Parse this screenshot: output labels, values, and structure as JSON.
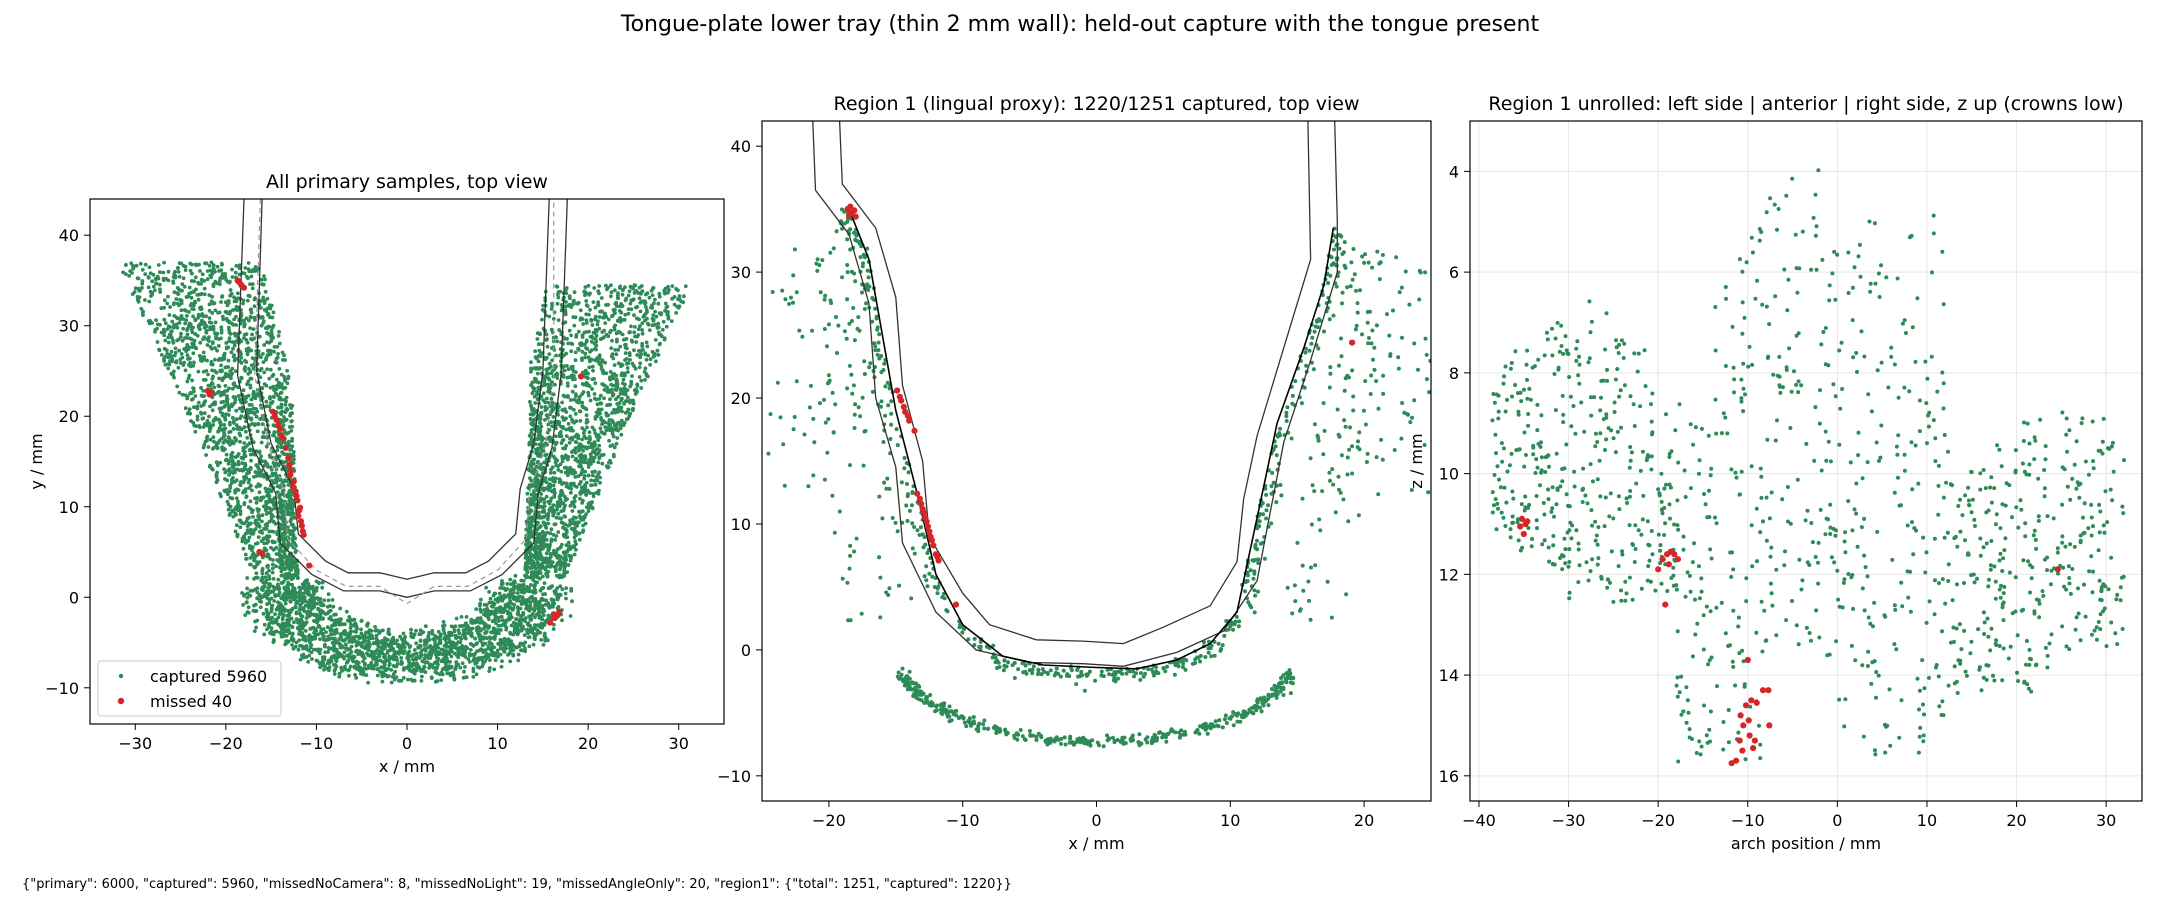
{
  "figure": {
    "title": "Tongue-plate lower tray (thin 2 mm wall): held-out capture with the tongue present",
    "footer": "{\"primary\": 6000, \"captured\": 5960, \"missedNoCamera\": 8, \"missedNoLight\": 19, \"missedAngleOnly\": 20, \"region1\": {\"total\": 1251, \"captured\": 1220}}"
  },
  "colors": {
    "captured": "#2e8b57",
    "missed": "#d62728",
    "outline": "#333333",
    "dashed": "#999999"
  },
  "chart_data": [
    {
      "type": "scatter",
      "title": "All primary samples, top view",
      "xlabel": "x / mm",
      "ylabel": "y / mm",
      "xlim": [
        -35,
        35
      ],
      "ylim": [
        -14,
        44
      ],
      "xticks": [
        -30,
        -20,
        -10,
        0,
        10,
        20,
        30
      ],
      "yticks": [
        -10,
        0,
        10,
        20,
        30,
        40
      ],
      "grid": false,
      "legend": {
        "placement": "lower-left",
        "entries": [
          {
            "label": "captured 5960",
            "series": "captured"
          },
          {
            "label": "missed 40",
            "series": "missed"
          }
        ]
      },
      "series": [
        {
          "name": "captured 5960",
          "count": 5960
        },
        {
          "name": "missed 40",
          "count": 40,
          "points": [
            [
              -18.7,
              35.0
            ],
            [
              -18.3,
              34.5
            ],
            [
              -18.0,
              34.2
            ],
            [
              -22.0,
              22.8
            ],
            [
              -21.8,
              22.4
            ],
            [
              -14.8,
              20.5
            ],
            [
              -14.4,
              19.6
            ],
            [
              -14.0,
              18.6
            ],
            [
              -13.7,
              17.6
            ],
            [
              -13.4,
              16.5
            ],
            [
              -13.1,
              15.4
            ],
            [
              -12.8,
              14.0
            ],
            [
              -12.5,
              12.8
            ],
            [
              -12.3,
              11.7
            ],
            [
              -12.1,
              10.7
            ],
            [
              -11.9,
              9.6
            ],
            [
              -11.7,
              8.4
            ],
            [
              -11.5,
              7.3
            ],
            [
              -16.3,
              5.0
            ],
            [
              -10.8,
              3.5
            ],
            [
              19.2,
              24.4
            ],
            [
              16.8,
              -1.6
            ],
            [
              16.3,
              -2.3
            ],
            [
              15.8,
              -2.8
            ],
            [
              16.2,
              -1.9
            ],
            [
              -12.0,
              9.0
            ],
            [
              -11.6,
              7.9
            ],
            [
              -12.6,
              12.2
            ],
            [
              -13.0,
              14.6
            ],
            [
              -14.2,
              19.0
            ],
            [
              -18.5,
              34.8
            ],
            [
              -13.9,
              17.9
            ],
            [
              -12.2,
              11.2
            ],
            [
              -11.8,
              9.9
            ],
            [
              -11.4,
              6.9
            ],
            [
              -12.9,
              13.5
            ],
            [
              -14.6,
              20.0
            ],
            [
              16.6,
              -2.0
            ],
            [
              -16.0,
              4.8
            ],
            [
              -21.6,
              22.6
            ]
          ]
        }
      ],
      "outlines": {
        "inner": [
          [
            -16,
            44
          ],
          [
            -16.6,
            25
          ],
          [
            -15,
            17
          ],
          [
            -12.5,
            12
          ],
          [
            -12,
            7
          ],
          [
            -9,
            4
          ],
          [
            -6.5,
            2.7
          ],
          [
            -3,
            2.7
          ],
          [
            0,
            2
          ],
          [
            3,
            2.7
          ],
          [
            6.5,
            2.7
          ],
          [
            9,
            4
          ],
          [
            12,
            7
          ],
          [
            12.5,
            12
          ],
          [
            14,
            17
          ],
          [
            15,
            25
          ],
          [
            15.7,
            44
          ]
        ],
        "outer": [
          [
            -18,
            44
          ],
          [
            -18.7,
            24.5
          ],
          [
            -17,
            16.5
          ],
          [
            -14.5,
            11.5
          ],
          [
            -14,
            6
          ],
          [
            -10.5,
            2.5
          ],
          [
            -7,
            0.7
          ],
          [
            -3,
            0.7
          ],
          [
            0,
            0
          ],
          [
            3,
            0.7
          ],
          [
            7,
            0.7
          ],
          [
            10.5,
            2.5
          ],
          [
            14,
            6
          ],
          [
            14.5,
            11.5
          ],
          [
            16,
            16.5
          ],
          [
            17,
            24.5
          ],
          [
            17.7,
            44
          ]
        ],
        "dashed": [
          [
            -16.2,
            44
          ],
          [
            -16.8,
            24.5
          ],
          [
            -15.3,
            16.8
          ],
          [
            -13.5,
            11.5
          ],
          [
            -13.2,
            6.5
          ],
          [
            -10,
            3
          ],
          [
            -6.7,
            1.2
          ],
          [
            -3,
            1.2
          ],
          [
            0,
            -0.7
          ],
          [
            3,
            1.2
          ],
          [
            6.7,
            1.2
          ],
          [
            10,
            3
          ],
          [
            13.2,
            6.5
          ],
          [
            13.5,
            11.5
          ],
          [
            15.3,
            16.8
          ],
          [
            16.2,
            24.5
          ],
          [
            16.2,
            44
          ]
        ]
      }
    },
    {
      "type": "scatter",
      "title": "Region 1 (lingual proxy): 1220/1251 captured, top view",
      "xlabel": "x / mm",
      "ylabel": "",
      "xlim": [
        -25,
        25
      ],
      "ylim": [
        -12,
        42
      ],
      "xticks": [
        -20,
        -10,
        0,
        10,
        20
      ],
      "yticks": [
        -10,
        0,
        10,
        20,
        30,
        40
      ],
      "grid": false,
      "series": [
        {
          "name": "captured",
          "count": 1220
        },
        {
          "name": "missed",
          "count": 31,
          "points": [
            [
              -18.6,
              35.0
            ],
            [
              -18.3,
              34.7
            ],
            [
              -18.0,
              34.4
            ],
            [
              -18.4,
              35.2
            ],
            [
              -14.9,
              20.6
            ],
            [
              -14.6,
              19.8
            ],
            [
              -14.3,
              18.9
            ],
            [
              -14.0,
              18.2
            ],
            [
              -13.6,
              17.4
            ],
            [
              -13.2,
              12.0
            ],
            [
              -13.0,
              11.2
            ],
            [
              -12.8,
              10.5
            ],
            [
              -12.6,
              9.8
            ],
            [
              -12.4,
              9.0
            ],
            [
              -12.2,
              8.3
            ],
            [
              -12.0,
              7.6
            ],
            [
              -11.8,
              7.1
            ],
            [
              -10.5,
              3.6
            ],
            [
              19.1,
              24.4
            ],
            [
              -18.1,
              34.9
            ],
            [
              -14.4,
              19.3
            ],
            [
              -12.9,
              10.9
            ],
            [
              -12.3,
              8.7
            ],
            [
              -13.4,
              12.4
            ],
            [
              -14.1,
              18.6
            ],
            [
              -12.7,
              10.2
            ],
            [
              -12.5,
              9.4
            ],
            [
              -11.9,
              7.4
            ],
            [
              -18.5,
              34.5
            ],
            [
              -14.7,
              20.1
            ],
            [
              -13.1,
              11.6
            ]
          ]
        }
      ],
      "outlines": {
        "inner": [
          [
            -19.2,
            42
          ],
          [
            -19,
            37
          ],
          [
            -16.5,
            33.5
          ],
          [
            -15,
            28
          ],
          [
            -14.5,
            21
          ],
          [
            -13,
            15
          ],
          [
            -12.5,
            9
          ],
          [
            -10,
            4.5
          ],
          [
            -8,
            2
          ],
          [
            -4.5,
            0.8
          ],
          [
            -1,
            0.7
          ],
          [
            2,
            0.5
          ],
          [
            5,
            1.8
          ],
          [
            8.5,
            3.5
          ],
          [
            10.5,
            7
          ],
          [
            11,
            12
          ],
          [
            12,
            17
          ],
          [
            14,
            24
          ],
          [
            16,
            31
          ],
          [
            15.8,
            42
          ]
        ],
        "outer": [
          [
            -21.2,
            42
          ],
          [
            -21,
            36.5
          ],
          [
            -18.5,
            33
          ],
          [
            -17,
            27.5
          ],
          [
            -16.5,
            20
          ],
          [
            -15,
            14.5
          ],
          [
            -14.5,
            8.5
          ],
          [
            -12,
            3
          ],
          [
            -9,
            0
          ],
          [
            -5,
            -1
          ],
          [
            -1,
            -1.1
          ],
          [
            2,
            -1.3
          ],
          [
            6,
            -0.2
          ],
          [
            9.5,
            1.5
          ],
          [
            12,
            5.5
          ],
          [
            13,
            11
          ],
          [
            14,
            16.5
          ],
          [
            16,
            23
          ],
          [
            18,
            30
          ],
          [
            18,
            34
          ],
          [
            17.8,
            42
          ]
        ],
        "surface": [
          [
            -18.5,
            35
          ],
          [
            -17,
            31
          ],
          [
            -16,
            25
          ],
          [
            -15,
            19
          ],
          [
            -13.3,
            12
          ],
          [
            -12,
            6
          ],
          [
            -10,
            2
          ],
          [
            -7,
            -0.5
          ],
          [
            -4,
            -1.2
          ],
          [
            0,
            -1.4
          ],
          [
            3,
            -1.5
          ],
          [
            6,
            -0.8
          ],
          [
            8.5,
            0.5
          ],
          [
            10.5,
            3
          ],
          [
            11.5,
            8
          ],
          [
            12.5,
            13
          ],
          [
            13.5,
            18
          ],
          [
            15.5,
            24
          ],
          [
            17,
            29
          ],
          [
            17.7,
            33.5
          ]
        ]
      }
    },
    {
      "type": "scatter",
      "title": "Region 1 unrolled: left side | anterior | right side, z up (crowns low)",
      "xlabel": "arch position / mm",
      "ylabel": "z / mm",
      "xlim": [
        -41,
        34
      ],
      "ylim": [
        16.5,
        3
      ],
      "y_inverted": true,
      "xticks": [
        -40,
        -30,
        -20,
        -10,
        0,
        10,
        20,
        30
      ],
      "yticks": [
        4,
        6,
        8,
        10,
        12,
        14,
        16
      ],
      "grid": true,
      "series": [
        {
          "name": "captured",
          "count": 1220
        },
        {
          "name": "missed",
          "count": 31,
          "points": [
            [
              -35.2,
              10.9
            ],
            [
              -34.8,
              11.0
            ],
            [
              -35.0,
              11.2
            ],
            [
              -34.6,
              10.95
            ],
            [
              -35.4,
              11.05
            ],
            [
              -20.0,
              11.9
            ],
            [
              -19.5,
              11.7
            ],
            [
              -19.0,
              11.6
            ],
            [
              -18.6,
              11.55
            ],
            [
              -18.2,
              11.6
            ],
            [
              -17.8,
              11.7
            ],
            [
              -19.2,
              12.6
            ],
            [
              -10.8,
              14.8
            ],
            [
              -10.2,
              14.6
            ],
            [
              -9.6,
              14.5
            ],
            [
              -9.0,
              14.55
            ],
            [
              -10.5,
              15.0
            ],
            [
              -9.8,
              15.2
            ],
            [
              -9.2,
              15.3
            ],
            [
              -10.6,
              15.5
            ],
            [
              -11.3,
              15.7
            ],
            [
              -8.3,
              14.3
            ],
            [
              -7.7,
              14.3
            ],
            [
              -7.6,
              15.0
            ],
            [
              -11.8,
              15.75
            ],
            [
              -10.0,
              13.7
            ],
            [
              24.6,
              11.9
            ],
            [
              -18.8,
              11.8
            ],
            [
              -9.4,
              15.45
            ],
            [
              -10.9,
              15.3
            ],
            [
              -9.9,
              14.9
            ]
          ]
        }
      ]
    }
  ]
}
